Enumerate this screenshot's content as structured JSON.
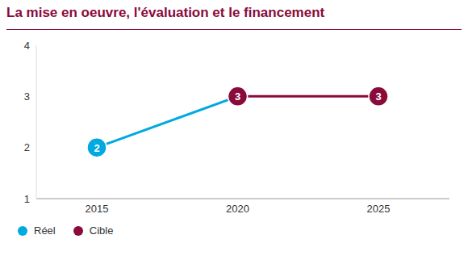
{
  "chart_data": {
    "type": "line",
    "title": "La mise en oeuvre, l'évaluation et le financement",
    "categories": [
      "2015",
      "2020",
      "2025"
    ],
    "series": [
      {
        "name": "Réel",
        "color": "#00a9e0",
        "values": [
          2,
          3,
          null
        ]
      },
      {
        "name": "Cible",
        "color": "#8a0a3c",
        "values": [
          null,
          3,
          3
        ]
      }
    ],
    "ylim": [
      1,
      4
    ],
    "yticks": [
      1,
      2,
      3,
      4
    ],
    "grid": false,
    "legend": "bottom-left",
    "data_labels": true,
    "marker": "circle"
  }
}
